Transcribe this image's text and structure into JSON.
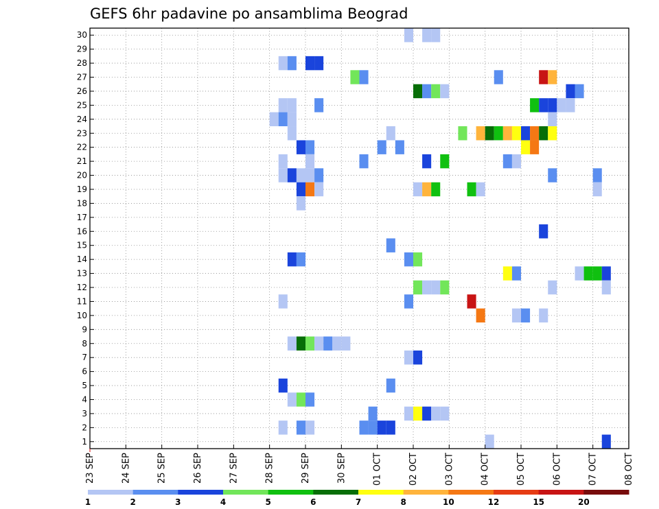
{
  "chart_data": {
    "type": "heatmap",
    "title": "GEFS 6hr padavine po ansamblima Beograd",
    "xlabel": "",
    "ylabel": "",
    "x_ticks": [
      "23 SEP",
      "24 SEP",
      "25 SEP",
      "26 SEP",
      "27 SEP",
      "28 SEP",
      "29 SEP",
      "30 SEP",
      "01 OCT",
      "02 OCT",
      "03 OCT",
      "04 OCT",
      "05 OCT",
      "06 OCT",
      "07 OCT",
      "08 OCT"
    ],
    "y_ticks": [
      1,
      2,
      3,
      4,
      5,
      6,
      7,
      8,
      9,
      10,
      11,
      12,
      13,
      14,
      15,
      16,
      17,
      18,
      19,
      20,
      21,
      22,
      23,
      24,
      25,
      26,
      27,
      28,
      29,
      30
    ],
    "grid": true,
    "colorbar": {
      "labels": [
        "1",
        "2",
        "3",
        "4",
        "5",
        "6",
        "7",
        "8",
        "10",
        "12",
        "15",
        "20"
      ],
      "colors": [
        "#b4c6f4",
        "#5a8ef0",
        "#1a44dc",
        "#72e65a",
        "#10c010",
        "#076e07",
        "#ffff10",
        "#ffb43c",
        "#f57814",
        "#e63c14",
        "#c81414",
        "#780c0c"
      ]
    },
    "steps_per_day": 4,
    "cells": [
      [
        -0.25,
        30,
        1
      ],
      [
        0.25,
        30,
        1
      ],
      [
        0.5,
        30,
        1
      ],
      [
        -3.75,
        28,
        1
      ],
      [
        -3.5,
        28,
        2
      ],
      [
        -3,
        28,
        3
      ],
      [
        -2.75,
        28,
        3
      ],
      [
        -1.75,
        27,
        4
      ],
      [
        -1.5,
        27,
        2
      ],
      [
        2.25,
        27,
        2
      ],
      [
        3.5,
        27,
        11
      ],
      [
        3.75,
        27,
        8
      ],
      [
        0,
        26,
        6
      ],
      [
        0.25,
        26,
        2
      ],
      [
        0.5,
        26,
        4
      ],
      [
        0.75,
        26,
        1
      ],
      [
        4.25,
        26,
        3
      ],
      [
        4.5,
        26,
        2
      ],
      [
        -3.75,
        25,
        1
      ],
      [
        -3.5,
        25,
        1
      ],
      [
        -2.75,
        25,
        2
      ],
      [
        3.25,
        25,
        5
      ],
      [
        3.5,
        25,
        3
      ],
      [
        3.75,
        25,
        3
      ],
      [
        4,
        25,
        1
      ],
      [
        4.25,
        25,
        1
      ],
      [
        -4,
        24,
        1
      ],
      [
        -3.75,
        24,
        2
      ],
      [
        -3.5,
        24,
        1
      ],
      [
        3.75,
        24,
        1
      ],
      [
        -3.5,
        23,
        1
      ],
      [
        -0.75,
        23,
        1
      ],
      [
        1.25,
        23,
        4
      ],
      [
        1.75,
        23,
        8
      ],
      [
        2,
        23,
        6
      ],
      [
        2.25,
        23,
        5
      ],
      [
        2.5,
        23,
        8
      ],
      [
        2.75,
        23,
        7
      ],
      [
        3,
        23,
        3
      ],
      [
        3.25,
        23,
        9
      ],
      [
        3.5,
        23,
        6
      ],
      [
        3.75,
        23,
        7
      ],
      [
        -3.25,
        22,
        3
      ],
      [
        -3,
        22,
        2
      ],
      [
        -1,
        22,
        2
      ],
      [
        -0.5,
        22,
        2
      ],
      [
        3,
        22,
        7
      ],
      [
        3.25,
        22,
        9
      ],
      [
        -3.75,
        21,
        1
      ],
      [
        -3,
        21,
        1
      ],
      [
        -1.5,
        21,
        2
      ],
      [
        0.25,
        21,
        3
      ],
      [
        0.75,
        21,
        5
      ],
      [
        2.5,
        21,
        2
      ],
      [
        2.75,
        21,
        1
      ],
      [
        -3.75,
        20,
        1
      ],
      [
        -3.5,
        20,
        3
      ],
      [
        -3.25,
        20,
        1
      ],
      [
        -3,
        20,
        1
      ],
      [
        -2.75,
        20,
        2
      ],
      [
        3.75,
        20,
        2
      ],
      [
        5,
        20,
        2
      ],
      [
        -3.25,
        19,
        3
      ],
      [
        -3,
        19,
        9
      ],
      [
        -2.75,
        19,
        1
      ],
      [
        0,
        19,
        1
      ],
      [
        0.25,
        19,
        8
      ],
      [
        0.5,
        19,
        5
      ],
      [
        1.5,
        19,
        5
      ],
      [
        1.75,
        19,
        1
      ],
      [
        5,
        19,
        1
      ],
      [
        -3.25,
        18,
        1
      ],
      [
        3.5,
        16,
        3
      ],
      [
        -0.75,
        15,
        2
      ],
      [
        -3.5,
        14,
        3
      ],
      [
        -3.25,
        14,
        2
      ],
      [
        -0.25,
        14,
        2
      ],
      [
        0,
        14,
        4
      ],
      [
        2.5,
        13,
        7
      ],
      [
        2.75,
        13,
        2
      ],
      [
        4.5,
        13,
        1
      ],
      [
        4.75,
        13,
        5
      ],
      [
        5,
        13,
        5
      ],
      [
        5.25,
        13,
        3
      ],
      [
        0,
        12,
        4
      ],
      [
        0.25,
        12,
        1
      ],
      [
        0.5,
        12,
        1
      ],
      [
        0.75,
        12,
        4
      ],
      [
        3.75,
        12,
        1
      ],
      [
        5.25,
        12,
        1
      ],
      [
        -3.75,
        11,
        1
      ],
      [
        -0.25,
        11,
        2
      ],
      [
        1.5,
        11,
        11
      ],
      [
        1.75,
        10,
        9
      ],
      [
        2.75,
        10,
        1
      ],
      [
        3,
        10,
        2
      ],
      [
        3.5,
        10,
        1
      ],
      [
        -3.5,
        8,
        1
      ],
      [
        -3.25,
        8,
        6
      ],
      [
        -3,
        8,
        4
      ],
      [
        -2.75,
        8,
        1
      ],
      [
        -2.5,
        8,
        2
      ],
      [
        -2.25,
        8,
        1
      ],
      [
        -2,
        8,
        1
      ],
      [
        -0.25,
        7,
        1
      ],
      [
        0,
        7,
        3
      ],
      [
        -3.75,
        5,
        3
      ],
      [
        -0.75,
        5,
        2
      ],
      [
        -3.5,
        4,
        1
      ],
      [
        -3.25,
        4,
        4
      ],
      [
        -3,
        4,
        2
      ],
      [
        -1.25,
        3,
        2
      ],
      [
        -0.25,
        3,
        1
      ],
      [
        0,
        3,
        7
      ],
      [
        0.25,
        3,
        3
      ],
      [
        0.5,
        3,
        1
      ],
      [
        0.75,
        3,
        1
      ],
      [
        -3.75,
        2,
        1
      ],
      [
        -3.25,
        2,
        2
      ],
      [
        -3,
        2,
        1
      ],
      [
        -1.5,
        2,
        2
      ],
      [
        -1.25,
        2,
        2
      ],
      [
        -1,
        2,
        3
      ],
      [
        -0.75,
        2,
        3
      ],
      [
        2,
        1,
        1
      ],
      [
        5.25,
        1,
        3
      ]
    ]
  }
}
